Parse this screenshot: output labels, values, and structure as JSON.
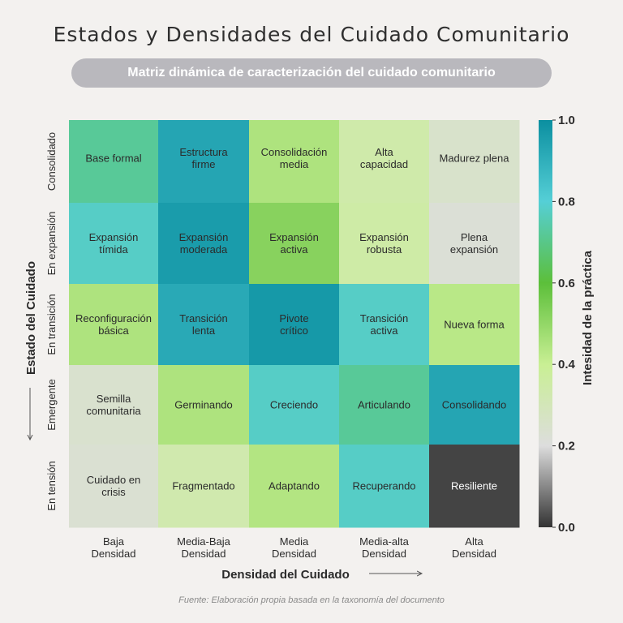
{
  "title": "Estados y Densidades del Cuidado Comunitario",
  "subtitle": "Matriz dinámica de caracterización del cuidado comunitario",
  "source": "Fuente: Elaboración propia basada en la taxonomía del documento",
  "chart_data": {
    "type": "heatmap",
    "xlabel": "Densidad del Cuidado",
    "ylabel": "Estado del Cuidado",
    "x_categories": [
      [
        "Baja",
        "Densidad"
      ],
      [
        "Media-Baja",
        "Densidad"
      ],
      [
        "Media",
        "Densidad"
      ],
      [
        "Media-alta",
        "Densidad"
      ],
      [
        "Alta",
        "Densidad"
      ]
    ],
    "y_categories": [
      "Consolidado",
      "En expansión",
      "En transición",
      "Emergente",
      "En tensión"
    ],
    "colorbar": {
      "label": "Intesidad de la práctica",
      "range": [
        0.0,
        1.0
      ],
      "ticks": [
        "0.0",
        "0.2",
        "0.4",
        "0.6",
        "0.8",
        "1.0"
      ],
      "colors": [
        "#333333",
        "#dddddd",
        "#c9ef94",
        "#5cbf3a",
        "#55cfd6",
        "#0b8fa0"
      ]
    },
    "cells": [
      [
        {
          "label": "Base formal",
          "value": 0.72
        },
        {
          "label": "Estructura firme",
          "value": 0.93
        },
        {
          "label": "Consolidación media",
          "value": 0.45
        },
        {
          "label": "Alta capacidad",
          "value": 0.34
        },
        {
          "label": "Madurez plena",
          "value": 0.25
        }
      ],
      [
        {
          "label": "Expansión tímida",
          "value": 0.78
        },
        {
          "label": "Expansión moderada",
          "value": 0.96
        },
        {
          "label": "Expansión activa",
          "value": 0.52
        },
        {
          "label": "Expansión robusta",
          "value": 0.35
        },
        {
          "label": "Plena expansión",
          "value": 0.22
        }
      ],
      [
        {
          "label": "Reconfiguración básica",
          "value": 0.45
        },
        {
          "label": "Transición lenta",
          "value": 0.92
        },
        {
          "label": "Pivote crítico",
          "value": 0.97
        },
        {
          "label": "Transición activa",
          "value": 0.78
        },
        {
          "label": "Nueva forma",
          "value": 0.43
        }
      ],
      [
        {
          "label": "Semilla comunitaria",
          "value": 0.24
        },
        {
          "label": "Germinando",
          "value": 0.45
        },
        {
          "label": "Creciendo",
          "value": 0.78
        },
        {
          "label": "Articulando",
          "value": 0.72
        },
        {
          "label": "Consolidando",
          "value": 0.93
        }
      ],
      [
        {
          "label": "Cuidado en crisis",
          "value": 0.23
        },
        {
          "label": "Fragmentado",
          "value": 0.33
        },
        {
          "label": "Adaptando",
          "value": 0.44
        },
        {
          "label": "Recuperando",
          "value": 0.78
        },
        {
          "label": "Resiliente",
          "value": 0.02
        }
      ]
    ]
  }
}
